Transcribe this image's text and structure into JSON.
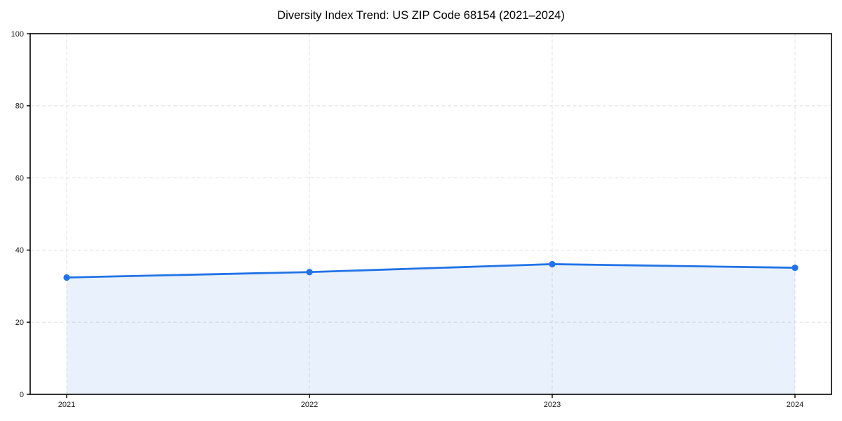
{
  "chart_data": {
    "type": "area",
    "title": "Diversity Index Trend: US ZIP Code 68154 (2021–2024)",
    "categories": [
      "2021",
      "2022",
      "2023",
      "2024"
    ],
    "series": [
      {
        "name": "Diversity Index",
        "values": [
          32.4,
          33.9,
          36.1,
          35.1
        ]
      }
    ],
    "xlabel": "",
    "ylabel": "",
    "ylim": [
      0,
      100
    ],
    "yticks": [
      0,
      20,
      40,
      60,
      80,
      100
    ],
    "grid": "dashed-both",
    "legend": "none",
    "markers": true,
    "colors": {
      "line": "#2273e6",
      "marker": "#2273e6",
      "fill": "rgba(34,115,230,0.10)",
      "grid": "#e3e3e3",
      "spine": "#000000",
      "tick_text": "#1a1a1a",
      "title_text": "#000000",
      "background": "#ffffff"
    }
  }
}
